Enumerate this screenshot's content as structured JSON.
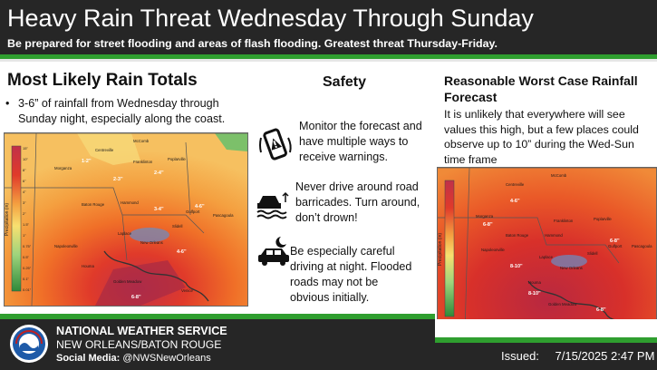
{
  "header": {
    "title": "Heavy Rain Threat Wednesday Through Sunday",
    "subtitle": "Be prepared for street flooding and areas of flash flooding. Greatest threat Thursday-Friday."
  },
  "left": {
    "heading": "Most Likely Rain Totals",
    "bullet": "3-6” of rainfall from Wednesday through Sunday night, especially along the coast.",
    "legend_title": "Precipitation (in)",
    "legend_ticks": [
      "15\"",
      "10\"",
      "8\"",
      "6\"",
      "4\"",
      "3\"",
      "2\"",
      "1.5\"",
      "1\"",
      "0.75\"",
      "0.5\"",
      "0.25\"",
      "0.1\"",
      "0.01\""
    ],
    "map_labels": {
      "a1": "1-2\"",
      "a2": "2-3\"",
      "a3": "2-4\"",
      "a4": "4-6\"",
      "a5": "6-8\"",
      "a6": "4-6\"",
      "a7": "3-4\"",
      "c1": "McComb",
      "c2": "Centreville",
      "c3": "Franklinton",
      "c4": "Poplarville",
      "c5": "Baton Rouge",
      "c6": "Hammond",
      "c7": "Slidell",
      "c8": "Gulfport",
      "c9": "Pascagoula",
      "c10": "Napoleonville",
      "c11": "Laplace",
      "c12": "New Orleans",
      "c13": "Houma",
      "c14": "Golden Meadow",
      "c15": "Venice",
      "c16": "Morganza"
    }
  },
  "safety": {
    "heading": "Safety",
    "items": [
      {
        "text": "Monitor the forecast and have multiple ways to receive warnings.",
        "icon": "phone-alert-icon"
      },
      {
        "text": "Never drive around road barricades. Turn around, don’t drown!",
        "icon": "car-flood-icon"
      },
      {
        "text": "Be especially careful driving at night. Flooded roads may not be obvious initially.",
        "icon": "car-night-icon"
      }
    ]
  },
  "right": {
    "heading": "Reasonable Worst Case Rainfall Forecast",
    "desc": "It is unlikely that everywhere will see values this high, but a few places could observe up to 10” during the Wed-Sun time frame",
    "legend_title": "Precipitation (in)",
    "map_labels": {
      "a1": "4-6\"",
      "a2": "6-8\"",
      "a3": "8-10\"",
      "a4": "6-8\"",
      "a5": "8-10\"",
      "a6": "6-8\""
    }
  },
  "footer": {
    "org": "NATIONAL WEATHER SERVICE",
    "office": "NEW ORLEANS/BATON ROUGE",
    "social_label": "Social Media:",
    "social_handle": "@NWSNewOrleans",
    "issued_label": "Issued:",
    "issued_date": "7/15/2025",
    "issued_time": "2:47 PM",
    "logo_text": "NOAA"
  },
  "colors": {
    "header_bg": "#262626",
    "accent_green": "#2f9e2f"
  }
}
